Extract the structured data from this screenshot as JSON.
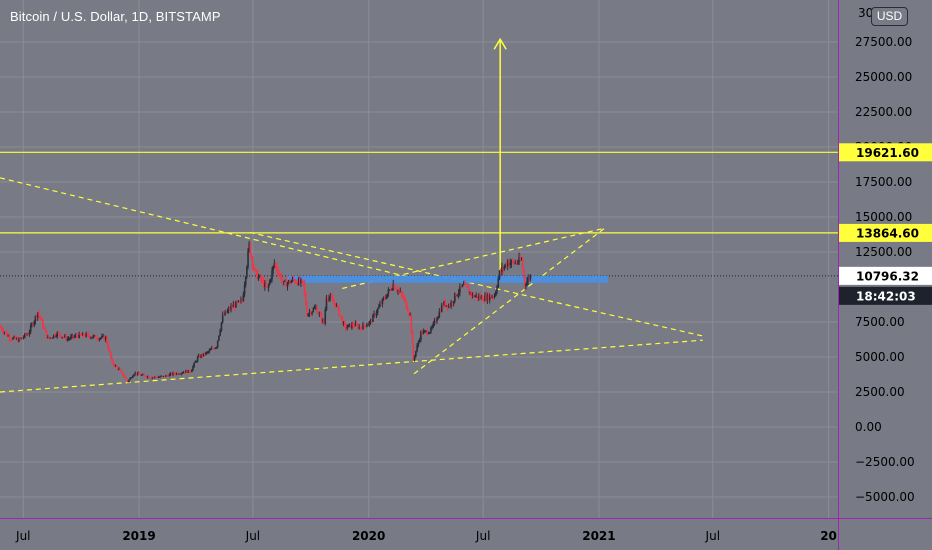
{
  "header": {
    "title": "Bitcoin / U.S. Dollar, 1D, BITSTAMP",
    "currency_button": "USD"
  },
  "colors": {
    "background": "#787b86",
    "grid": "#8a8d97",
    "axis_border": "#9c27b0",
    "candle_up": "#2a2e39",
    "candle_down": "#f23645",
    "yellow": "#ffff3b",
    "blue_zone": "#4a90e2",
    "last_price_tag": "#ffffff",
    "timer_tag": "#1e222d"
  },
  "price_axis": {
    "ticks": [
      {
        "value": 27500,
        "label": "27500.00"
      },
      {
        "value": 25000,
        "label": "25000.00"
      },
      {
        "value": 22500,
        "label": "22500.00"
      },
      {
        "value": 20000,
        "label": "20000.00"
      },
      {
        "value": 17500,
        "label": "17500.00"
      },
      {
        "value": 15000,
        "label": "15000.00"
      },
      {
        "value": 12500,
        "label": "12500.00"
      },
      {
        "value": 7500,
        "label": "7500.00"
      },
      {
        "value": 5000,
        "label": "5000.00"
      },
      {
        "value": 2500,
        "label": "2500.00"
      },
      {
        "value": 0,
        "label": "0.00"
      },
      {
        "value": -2500,
        "label": "−2500.00"
      },
      {
        "value": -5000,
        "label": "−5000.00"
      }
    ],
    "top_cut_label": "30"
  },
  "time_axis": {
    "labels": [
      {
        "date": "2018-07-01",
        "label": "Jul",
        "bold": false
      },
      {
        "date": "2019-01-01",
        "label": "2019",
        "bold": true
      },
      {
        "date": "2019-07-01",
        "label": "Jul",
        "bold": false
      },
      {
        "date": "2020-01-01",
        "label": "2020",
        "bold": true
      },
      {
        "date": "2020-07-01",
        "label": "Jul",
        "bold": false
      },
      {
        "date": "2021-01-01",
        "label": "2021",
        "bold": true
      },
      {
        "date": "2021-07-01",
        "label": "Jul",
        "bold": false
      },
      {
        "date": "2022-01-01",
        "label": "20",
        "bold": true
      }
    ]
  },
  "levels": {
    "resistance_high": {
      "value": 19621.6,
      "label": "19621.60"
    },
    "resistance_mid": {
      "value": 13864.6,
      "label": "13864.60"
    },
    "last_price": {
      "value": 10796.32,
      "label": "10796.32"
    },
    "countdown": "18:42:03"
  },
  "chart_data": {
    "type": "candlestick",
    "symbol": "Bitcoin / U.S. Dollar",
    "interval": "1D",
    "exchange": "BITSTAMP",
    "ylim": [
      -6500,
      30500
    ],
    "x_range": [
      "2018-05-25",
      "2022-01-16"
    ],
    "price_path": [
      [
        "2018-05-25",
        7200
      ],
      [
        "2018-06-10",
        6400
      ],
      [
        "2018-06-25",
        6200
      ],
      [
        "2018-07-10",
        6700
      ],
      [
        "2018-07-25",
        8200
      ],
      [
        "2018-08-10",
        6300
      ],
      [
        "2018-08-25",
        6700
      ],
      [
        "2018-09-10",
        6300
      ],
      [
        "2018-09-25",
        6500
      ],
      [
        "2018-10-10",
        6550
      ],
      [
        "2018-10-25",
        6400
      ],
      [
        "2018-11-10",
        6350
      ],
      [
        "2018-11-20",
        4600
      ],
      [
        "2018-12-01",
        4100
      ],
      [
        "2018-12-15",
        3250
      ],
      [
        "2018-12-25",
        3850
      ],
      [
        "2019-01-10",
        3650
      ],
      [
        "2019-01-25",
        3550
      ],
      [
        "2019-02-10",
        3600
      ],
      [
        "2019-02-25",
        3800
      ],
      [
        "2019-03-10",
        3900
      ],
      [
        "2019-03-25",
        4000
      ],
      [
        "2019-04-05",
        4950
      ],
      [
        "2019-04-20",
        5300
      ],
      [
        "2019-05-05",
        5800
      ],
      [
        "2019-05-15",
        7900
      ],
      [
        "2019-05-30",
        8600
      ],
      [
        "2019-06-15",
        9000
      ],
      [
        "2019-06-26",
        13000
      ],
      [
        "2019-07-05",
        11000
      ],
      [
        "2019-07-15",
        10500
      ],
      [
        "2019-07-25",
        9800
      ],
      [
        "2019-08-05",
        11700
      ],
      [
        "2019-08-20",
        10200
      ],
      [
        "2019-09-05",
        10500
      ],
      [
        "2019-09-20",
        10200
      ],
      [
        "2019-09-26",
        8100
      ],
      [
        "2019-10-10",
        8500
      ],
      [
        "2019-10-23",
        7400
      ],
      [
        "2019-10-27",
        9400
      ],
      [
        "2019-11-10",
        8800
      ],
      [
        "2019-11-25",
        7100
      ],
      [
        "2019-12-10",
        7300
      ],
      [
        "2019-12-20",
        7100
      ],
      [
        "2020-01-05",
        7500
      ],
      [
        "2020-01-20",
        8700
      ],
      [
        "2020-02-10",
        10200
      ],
      [
        "2020-02-25",
        9300
      ],
      [
        "2020-03-08",
        8000
      ],
      [
        "2020-03-13",
        4800
      ],
      [
        "2020-03-25",
        6700
      ],
      [
        "2020-04-10",
        6900
      ],
      [
        "2020-04-29",
        8800
      ],
      [
        "2020-05-10",
        8700
      ],
      [
        "2020-05-20",
        9500
      ],
      [
        "2020-06-01",
        10100
      ],
      [
        "2020-06-15",
        9400
      ],
      [
        "2020-07-01",
        9200
      ],
      [
        "2020-07-20",
        9400
      ],
      [
        "2020-07-28",
        11000
      ],
      [
        "2020-08-10",
        11800
      ],
      [
        "2020-08-20",
        11700
      ],
      [
        "2020-09-01",
        11900
      ],
      [
        "2020-09-06",
        10200
      ],
      [
        "2020-09-15",
        10800
      ]
    ],
    "annotations": [
      {
        "type": "ray",
        "from": [
          "2018-05-25",
          17800
        ],
        "to": [
          "2020-03-15",
          10600
        ],
        "color": "yellow",
        "style": "dashed"
      },
      {
        "type": "ray",
        "from": [
          "2019-06-26",
          13900
        ],
        "to": [
          "2021-06-15",
          6500
        ],
        "color": "yellow",
        "style": "dashed"
      },
      {
        "type": "ray",
        "from": [
          "2018-05-25",
          2500
        ],
        "to": [
          "2021-06-15",
          6200
        ],
        "color": "yellow",
        "style": "dashed"
      },
      {
        "type": "ray",
        "from": [
          "2020-03-13",
          3800
        ],
        "to": [
          "2021-01-10",
          14200
        ],
        "color": "yellow",
        "style": "dashed"
      },
      {
        "type": "ray",
        "from": [
          "2019-11-20",
          9900
        ],
        "to": [
          "2021-01-10",
          14200
        ],
        "color": "yellow",
        "style": "dashed"
      },
      {
        "type": "arrow",
        "from": [
          "2020-07-28",
          11000
        ],
        "to": [
          "2020-07-28",
          27700
        ],
        "color": "yellow"
      },
      {
        "type": "zone",
        "from": [
          "2019-08-25",
          10300
        ],
        "to": [
          "2021-01-15",
          10800
        ],
        "color": "blue"
      }
    ]
  }
}
